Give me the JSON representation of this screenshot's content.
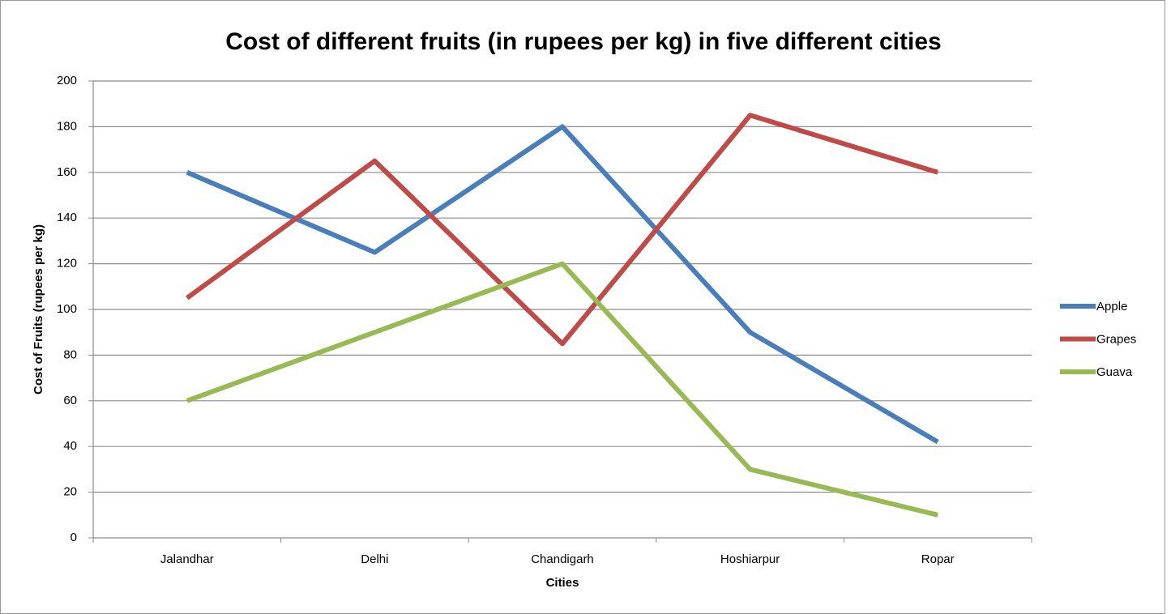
{
  "chart_data": {
    "type": "line",
    "title": "Cost of different fruits (in rupees per kg) in five different cities",
    "x_label": "Cities",
    "y_label": "Cost of Fruits (rupees per kg)",
    "categories": [
      "Jalandhar",
      "Delhi",
      "Chandigarh",
      "Hoshiarpur",
      "Ropar"
    ],
    "series": [
      {
        "name": "Apple",
        "color": "#4a7ebb",
        "values": [
          160,
          125,
          180,
          90,
          42
        ]
      },
      {
        "name": "Grapes",
        "color": "#be4b48",
        "values": [
          105,
          165,
          85,
          185,
          160
        ]
      },
      {
        "name": "Guava",
        "color": "#98b954",
        "values": [
          60,
          90,
          120,
          30,
          10
        ]
      }
    ],
    "ylim": [
      0,
      200
    ],
    "yticks": [
      0,
      20,
      40,
      60,
      80,
      100,
      120,
      140,
      160,
      180,
      200
    ],
    "grid": true,
    "legend": "right"
  }
}
